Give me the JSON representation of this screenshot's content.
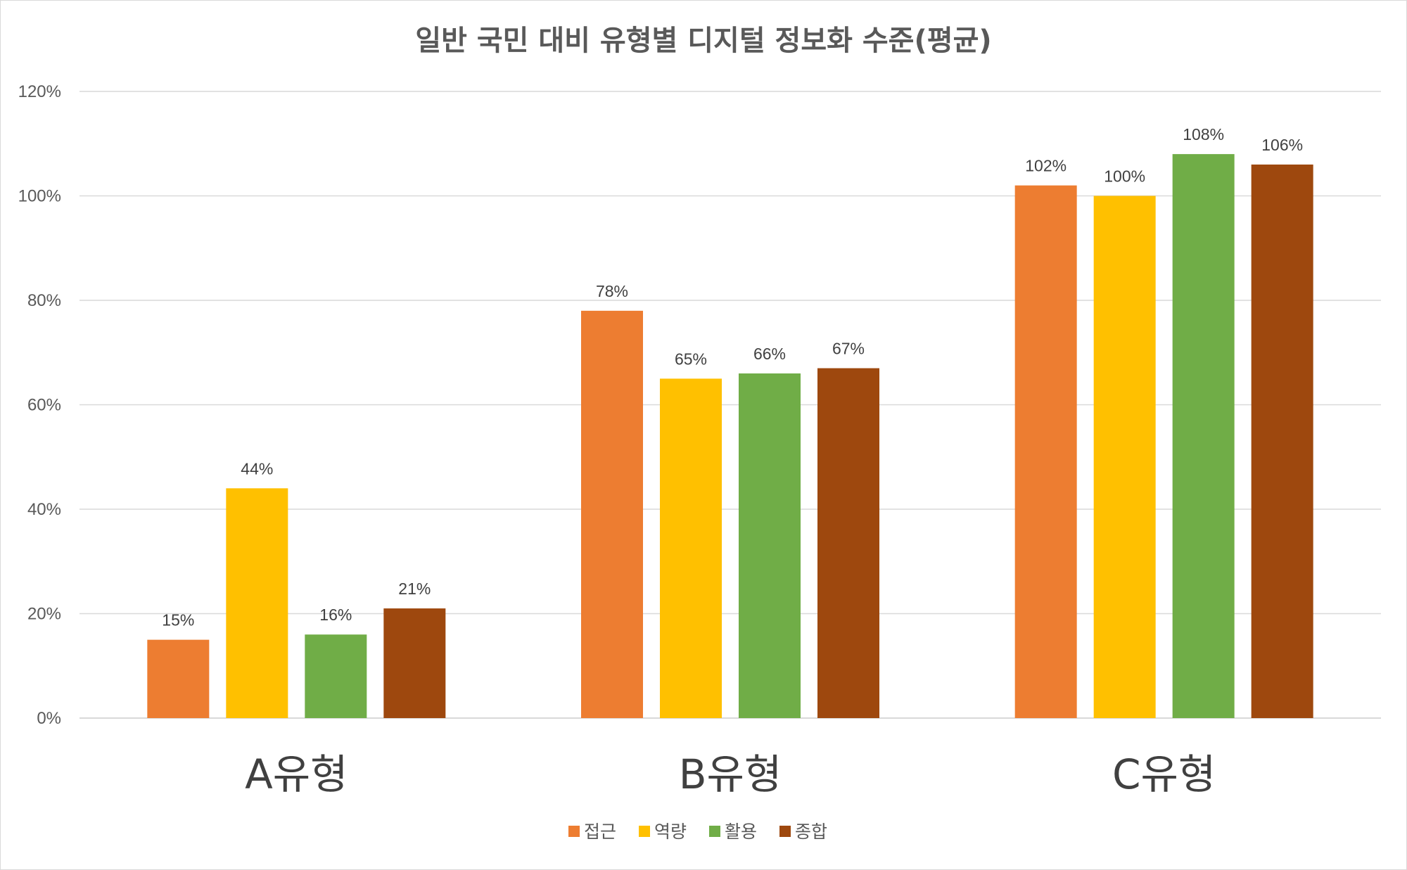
{
  "chart_data": {
    "type": "bar",
    "title": "일반 국민 대비 유형별 디지털 정보화 수준(평균)",
    "categories": [
      "A유형",
      "B유형",
      "C유형"
    ],
    "series": [
      {
        "name": "접근",
        "color": "#ED7D31",
        "values": [
          15,
          78,
          102
        ],
        "labels": [
          "15%",
          "78%",
          "102%"
        ]
      },
      {
        "name": "역량",
        "color": "#FFC000",
        "values": [
          44,
          65,
          100
        ],
        "labels": [
          "44%",
          "65%",
          "100%"
        ]
      },
      {
        "name": "활용",
        "color": "#70AD47",
        "values": [
          16,
          66,
          108
        ],
        "labels": [
          "16%",
          "66%",
          "108%"
        ]
      },
      {
        "name": "종합",
        "color": "#9E480E",
        "values": [
          21,
          67,
          106
        ],
        "labels": [
          "21%",
          "67%",
          "106%"
        ]
      }
    ],
    "ylim": [
      0,
      120
    ],
    "yticks": [
      0,
      20,
      40,
      60,
      80,
      100,
      120
    ],
    "ytick_labels": [
      "0%",
      "20%",
      "40%",
      "60%",
      "80%",
      "100%",
      "120%"
    ],
    "xlabel": "",
    "ylabel": "",
    "grid": true,
    "legend_position": "bottom-center"
  }
}
